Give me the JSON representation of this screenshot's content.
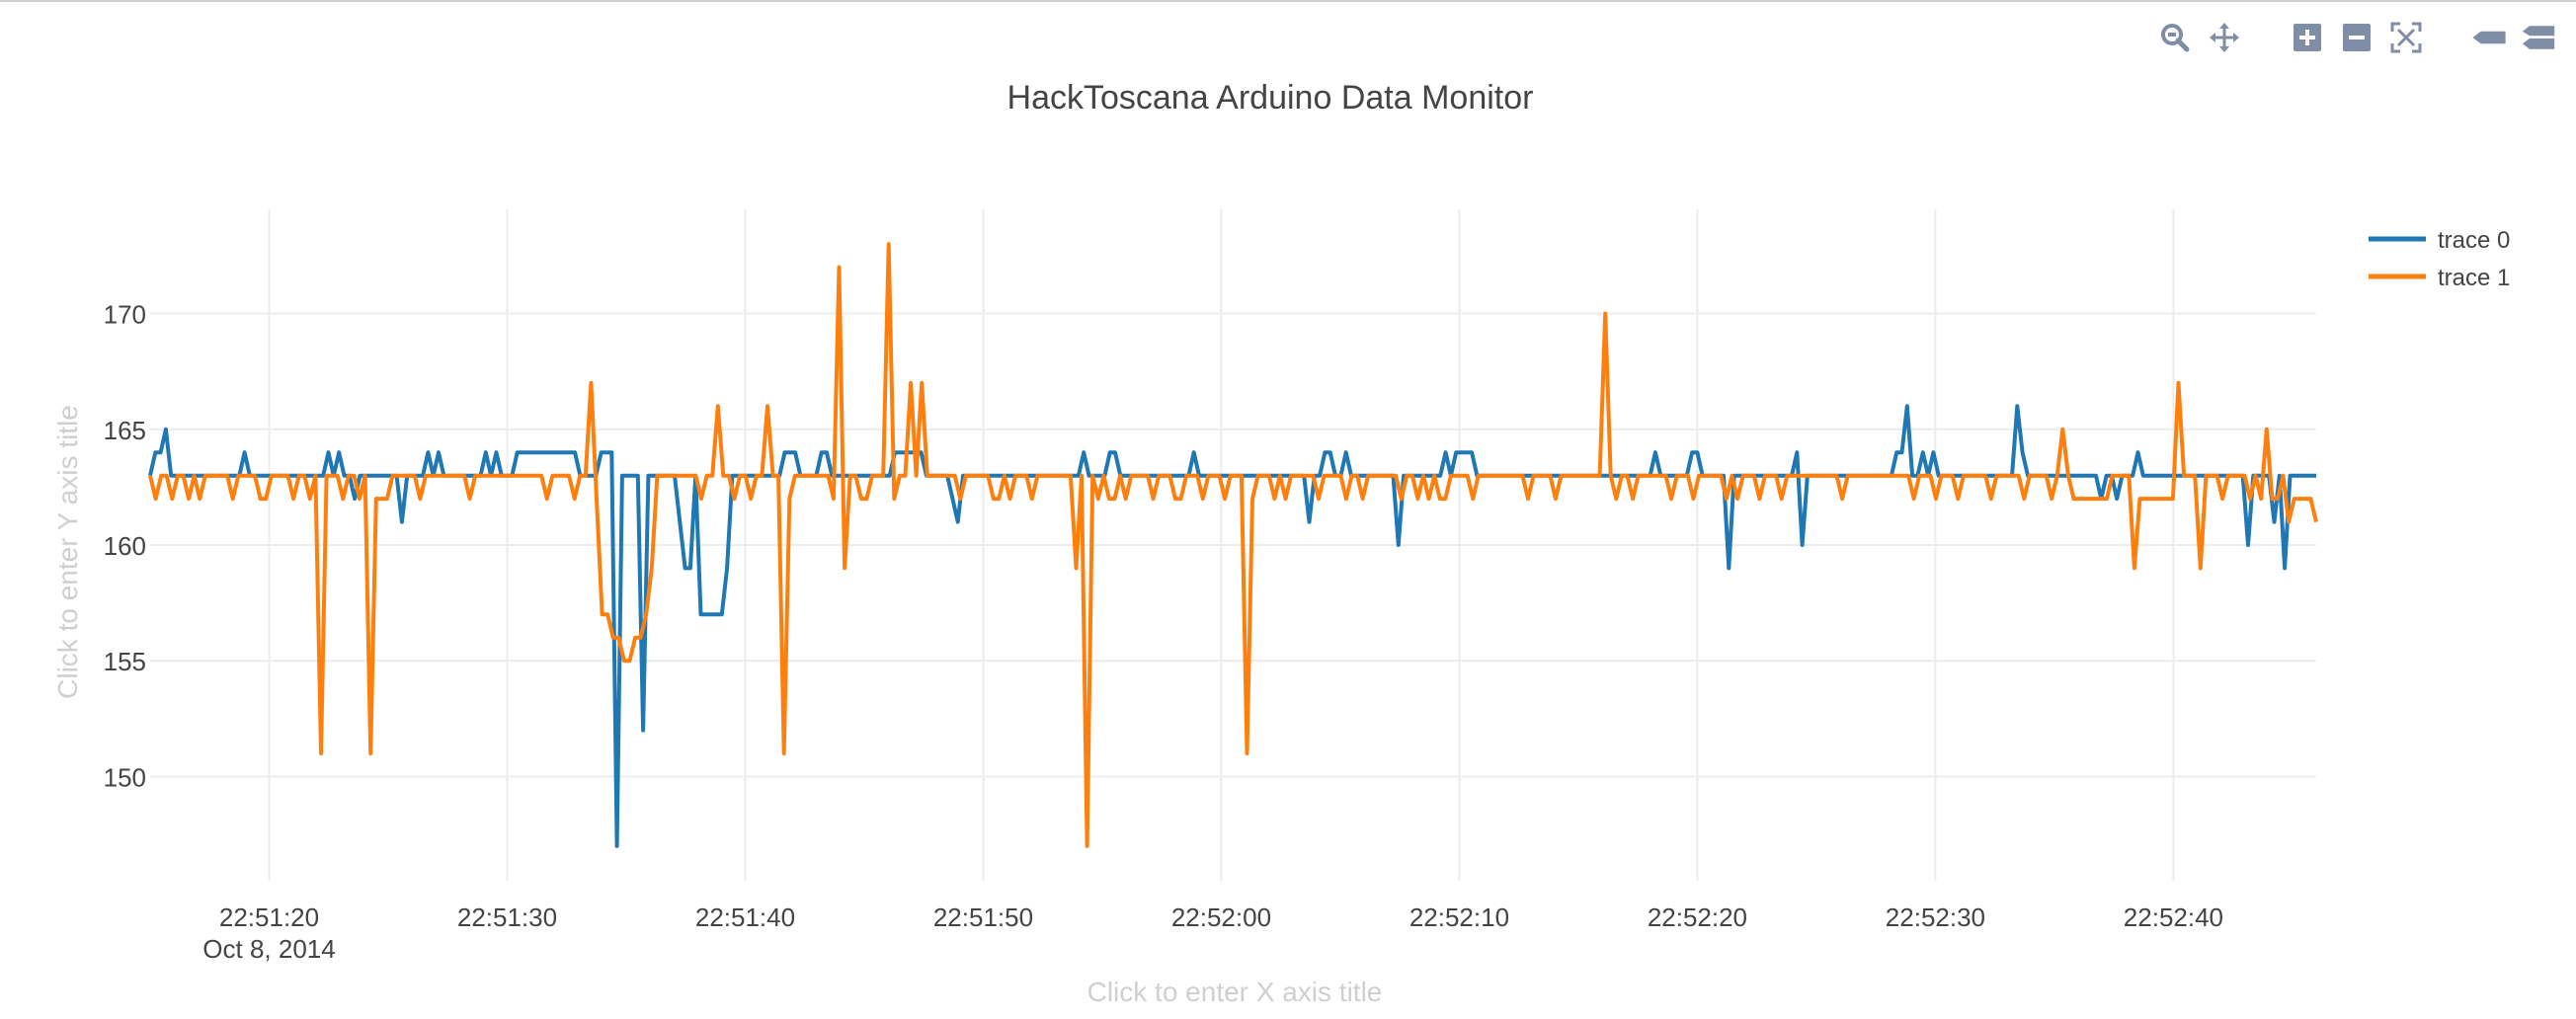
{
  "chart_data": {
    "type": "line",
    "title": "HackToscana Arduino Data Monitor",
    "xlabel": "Click to enter X axis title",
    "ylabel": "Click to enter Y axis title",
    "x_start": "2014-10-08 22:51:15",
    "x_end": "2014-10-08 22:52:46",
    "x_ticks": [
      "22:51:20",
      "22:51:30",
      "22:51:40",
      "22:51:50",
      "22:52:00",
      "22:52:10",
      "22:52:20",
      "22:52:30",
      "22:52:40"
    ],
    "x_date_label": "Oct 8, 2014",
    "y_ticks": [
      150,
      155,
      160,
      165,
      170
    ],
    "ylim": [
      145.5,
      174.5
    ],
    "grid": true,
    "legend_position": "top-right",
    "series": [
      {
        "name": "trace 0",
        "color": "#1f77b4",
        "values": [
          163,
          164,
          164,
          165,
          163,
          163,
          163,
          163,
          163,
          163,
          163,
          163,
          163,
          163,
          163,
          163,
          163,
          163,
          164,
          163,
          163,
          163,
          163,
          163,
          163,
          163,
          163,
          163,
          163,
          163,
          163,
          163,
          163,
          163,
          164,
          163,
          164,
          163,
          163,
          162,
          163,
          163,
          163,
          163,
          163,
          163,
          163,
          163,
          161,
          163,
          163,
          163,
          163,
          164,
          163,
          164,
          163,
          163,
          163,
          163,
          163,
          163,
          163,
          163,
          164,
          163,
          164,
          163,
          163,
          163,
          164,
          164,
          164,
          164,
          164,
          164,
          164,
          164,
          164,
          164,
          164,
          164,
          163,
          163,
          163,
          163,
          164,
          164,
          164,
          147,
          163,
          163,
          163,
          163,
          152,
          163,
          163,
          163,
          163,
          163,
          163,
          161,
          159,
          159,
          163,
          157,
          157,
          157,
          157,
          157,
          159,
          163,
          163,
          163,
          163,
          163,
          163,
          163,
          163,
          163,
          163,
          164,
          164,
          164,
          163,
          163,
          163,
          163,
          164,
          164,
          163,
          163,
          163,
          163,
          163,
          163,
          163,
          163,
          163,
          163,
          163,
          163,
          164,
          164,
          164,
          164,
          164,
          164,
          163,
          163,
          163,
          163,
          163,
          162,
          161,
          163,
          163,
          163,
          163,
          163,
          163,
          163,
          163,
          163,
          163,
          163,
          163,
          163,
          163,
          163,
          163,
          163,
          163,
          163,
          163,
          163,
          163,
          163,
          164,
          163,
          163,
          163,
          163,
          164,
          164,
          163,
          163,
          163,
          163,
          163,
          163,
          163,
          163,
          163,
          163,
          163,
          163,
          163,
          163,
          164,
          163,
          163,
          163,
          163,
          163,
          163,
          163,
          163,
          163,
          163,
          163,
          163,
          163,
          163,
          163,
          163,
          163,
          163,
          163,
          163,
          163,
          161,
          163,
          163,
          164,
          164,
          163,
          163,
          164,
          163,
          163,
          163,
          163,
          163,
          163,
          163,
          163,
          163,
          160,
          163,
          163,
          163,
          163,
          163,
          163,
          163,
          163,
          164,
          163,
          164,
          164,
          164,
          164,
          163,
          163,
          163,
          163,
          163,
          163,
          163,
          163,
          163,
          163,
          163,
          163,
          163,
          163,
          163,
          163,
          163,
          163,
          163,
          163,
          163,
          163,
          163,
          163,
          163,
          163,
          163,
          163,
          163,
          163,
          163,
          163,
          163,
          163,
          164,
          163,
          163,
          163,
          163,
          163,
          163,
          164,
          164,
          163,
          163,
          163,
          163,
          163,
          159,
          163,
          163,
          163,
          163,
          163,
          163,
          163,
          163,
          163,
          163,
          163,
          163,
          164,
          160,
          163,
          163,
          163,
          163,
          163,
          163,
          163,
          163,
          163,
          163,
          163,
          163,
          163,
          163,
          163,
          163,
          163,
          164,
          164,
          166,
          163,
          163,
          164,
          163,
          164,
          163,
          163,
          163,
          163,
          163,
          163,
          163,
          163,
          163,
          163,
          163,
          163,
          163,
          163,
          163,
          166,
          164,
          163,
          163,
          163,
          163,
          163,
          163,
          163,
          163,
          163,
          163,
          163,
          163,
          163,
          163,
          162,
          163,
          163,
          162,
          163,
          163,
          163,
          164,
          163,
          163,
          163,
          163,
          163,
          163,
          163,
          163,
          163,
          163,
          163,
          163,
          163,
          163,
          163,
          163,
          163,
          163,
          163,
          163,
          160,
          163,
          163,
          163,
          163,
          161,
          163,
          159,
          163,
          163,
          163,
          163,
          163,
          163
        ]
      },
      {
        "name": "trace 1",
        "color": "#ff7f0e",
        "values": [
          163,
          162,
          163,
          163,
          162,
          163,
          163,
          162,
          163,
          162,
          163,
          163,
          163,
          163,
          163,
          162,
          163,
          163,
          163,
          163,
          162,
          162,
          163,
          163,
          163,
          163,
          162,
          163,
          163,
          162,
          163,
          151,
          163,
          163,
          163,
          162,
          163,
          163,
          162,
          163,
          151,
          162,
          162,
          162,
          163,
          163,
          163,
          163,
          163,
          162,
          163,
          163,
          163,
          163,
          163,
          163,
          163,
          163,
          162,
          163,
          163,
          163,
          163,
          163,
          163,
          163,
          163,
          163,
          163,
          163,
          163,
          163,
          162,
          163,
          163,
          163,
          163,
          162,
          163,
          163,
          167,
          162,
          157,
          157,
          156,
          156,
          155,
          155,
          156,
          156,
          157,
          159,
          163,
          163,
          163,
          163,
          163,
          163,
          163,
          163,
          162,
          163,
          163,
          166,
          163,
          163,
          162,
          163,
          163,
          162,
          163,
          163,
          166,
          163,
          163,
          151,
          162,
          163,
          163,
          163,
          163,
          163,
          163,
          163,
          162,
          172,
          159,
          163,
          163,
          162,
          162,
          163,
          163,
          163,
          173,
          162,
          163,
          163,
          167,
          163,
          167,
          163,
          163,
          163,
          163,
          163,
          163,
          162,
          163,
          163,
          163,
          163,
          163,
          162,
          162,
          163,
          162,
          163,
          163,
          163,
          162,
          163,
          163,
          163,
          163,
          163,
          163,
          163,
          159,
          163,
          147,
          163,
          162,
          163,
          162,
          162,
          163,
          162,
          163,
          163,
          163,
          163,
          162,
          163,
          163,
          163,
          162,
          162,
          163,
          163,
          163,
          162,
          163,
          163,
          163,
          162,
          163,
          163,
          163,
          151,
          162,
          163,
          163,
          163,
          162,
          163,
          162,
          163,
          163,
          163,
          163,
          163,
          162,
          163,
          163,
          163,
          163,
          162,
          163,
          163,
          162,
          163,
          163,
          163,
          163,
          163,
          163,
          162,
          163,
          163,
          162,
          163,
          162,
          163,
          162,
          162,
          163,
          163,
          163,
          163,
          162,
          163,
          163,
          163,
          163,
          163,
          163,
          163,
          163,
          163,
          162,
          163,
          163,
          163,
          163,
          162,
          163,
          163,
          163,
          163,
          163,
          163,
          163,
          163,
          170,
          163,
          162,
          163,
          163,
          162,
          163,
          163,
          163,
          163,
          163,
          163,
          162,
          163,
          163,
          163,
          162,
          163,
          163,
          163,
          163,
          163,
          162,
          163,
          162,
          163,
          163,
          163,
          162,
          163,
          163,
          163,
          162,
          163,
          163,
          163,
          163,
          163,
          163,
          163,
          163,
          163,
          163,
          162,
          163,
          163,
          163,
          163,
          163,
          163,
          163,
          163,
          163,
          163,
          163,
          163,
          162,
          163,
          163,
          163,
          162,
          163,
          163,
          163,
          162,
          163,
          163,
          163,
          163,
          163,
          162,
          163,
          163,
          163,
          163,
          163,
          162,
          163,
          163,
          163,
          163,
          162,
          163,
          165,
          163,
          162,
          162,
          162,
          162,
          162,
          162,
          162,
          163,
          163,
          163,
          163,
          159,
          162,
          162,
          162,
          162,
          162,
          162,
          162,
          167,
          163,
          163,
          163,
          159,
          163,
          163,
          163,
          162,
          163,
          163,
          163,
          163,
          162,
          163,
          162,
          165,
          162,
          162,
          163,
          161,
          162,
          162,
          162,
          162,
          161
        ]
      }
    ]
  },
  "modebar": {
    "icons": [
      "zoom-icon",
      "pan-icon",
      "zoom-in-icon",
      "zoom-out-icon",
      "autoscale-icon",
      "hover-closest-icon",
      "hover-compare-icon"
    ]
  }
}
